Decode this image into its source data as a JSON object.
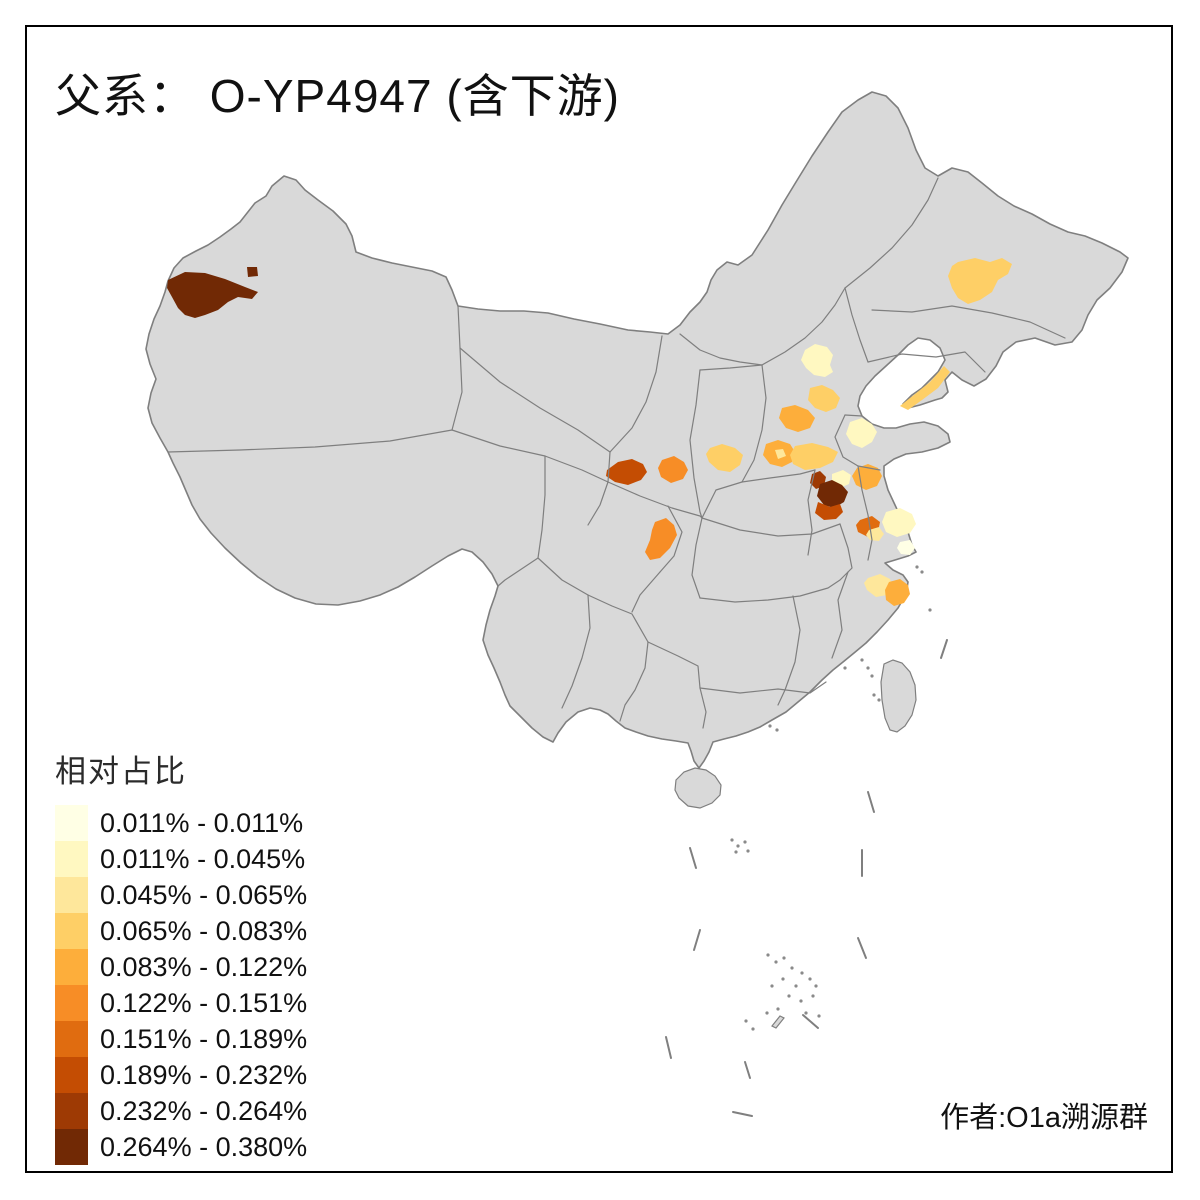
{
  "title": "父系： O-YP4947 (含下游)",
  "legend": {
    "title": "相对占比",
    "classes": [
      {
        "label": "0.011% - 0.011%",
        "color": "#FFFFE5"
      },
      {
        "label": "0.011% - 0.045%",
        "color": "#FFF8C1"
      },
      {
        "label": "0.045% - 0.065%",
        "color": "#FEE79B"
      },
      {
        "label": "0.065% - 0.083%",
        "color": "#FECF66"
      },
      {
        "label": "0.083% - 0.122%",
        "color": "#FDAE3B"
      },
      {
        "label": "0.122% - 0.151%",
        "color": "#F78D26"
      },
      {
        "label": "0.151% - 0.189%",
        "color": "#E06C10"
      },
      {
        "label": "0.189% - 0.232%",
        "color": "#C44D03"
      },
      {
        "label": "0.232% - 0.264%",
        "color": "#9E3A04"
      },
      {
        "label": "0.264% - 0.380%",
        "color": "#712905"
      }
    ]
  },
  "attribution": "作者:O1a溯源群",
  "map": {
    "land_fill": "#D9D9D9",
    "border_stroke": "#7F7F7F",
    "sea_fill": "#FFFFFF",
    "regions": [
      {
        "id": "r1",
        "class": 10
      },
      {
        "id": "r1b",
        "class": 10
      },
      {
        "id": "r2",
        "class": 4
      },
      {
        "id": "r3",
        "class": 4
      },
      {
        "id": "r4",
        "class": 2
      },
      {
        "id": "r5",
        "class": 4
      },
      {
        "id": "r6",
        "class": 5
      },
      {
        "id": "r7",
        "class": 4
      },
      {
        "id": "r8",
        "class": 2
      },
      {
        "id": "r9-outer",
        "class": 5
      },
      {
        "id": "r9-hole",
        "class": 3
      },
      {
        "id": "r10",
        "class": 4
      },
      {
        "id": "r11",
        "class": 5
      },
      {
        "id": "r15",
        "class": 2
      },
      {
        "id": "r12",
        "class": 9
      },
      {
        "id": "r13",
        "class": 10
      },
      {
        "id": "r14",
        "class": 8
      },
      {
        "id": "r16",
        "class": 8
      },
      {
        "id": "r17",
        "class": 6
      },
      {
        "id": "r18",
        "class": 6
      },
      {
        "id": "r19",
        "class": 7
      },
      {
        "id": "r20",
        "class": 2
      },
      {
        "id": "r21",
        "class": 1
      },
      {
        "id": "r22",
        "class": 3
      },
      {
        "id": "r23",
        "class": 3
      },
      {
        "id": "r24",
        "class": 5
      }
    ]
  }
}
